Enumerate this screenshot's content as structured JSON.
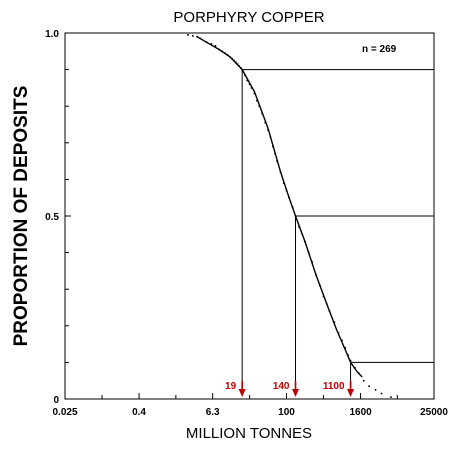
{
  "chart_data": {
    "type": "line",
    "title": "PORPHYRY COPPER",
    "xlabel": "MILLION TONNES",
    "ylabel": "PROPORTION OF DEPOSITS",
    "x_scale": "log",
    "xlim": [
      0.025,
      25000
    ],
    "ylim": [
      0,
      1
    ],
    "x_ticks": [
      "0.025",
      "0.4",
      "6.3",
      "100",
      "1600",
      "25000"
    ],
    "y_ticks": [
      "0",
      "0.5",
      "1.0"
    ],
    "annotation": "n = 269",
    "grid": false,
    "fitted_curve": {
      "x": [
        3.5,
        5,
        8,
        12,
        19,
        30,
        50,
        80,
        110,
        140,
        200,
        300,
        450,
        650,
        900,
        1100,
        1400,
        1700
      ],
      "y": [
        0.99,
        0.975,
        0.955,
        0.935,
        0.9,
        0.84,
        0.74,
        0.62,
        0.55,
        0.5,
        0.43,
        0.34,
        0.26,
        0.19,
        0.135,
        0.1,
        0.075,
        0.06
      ]
    },
    "observed_points": {
      "x": [
        2.5,
        3,
        3.5,
        4,
        5,
        6,
        7,
        8,
        9,
        10,
        11,
        12,
        13,
        14,
        15,
        16,
        17,
        18,
        19,
        21,
        23,
        25,
        27,
        30,
        33,
        36,
        40,
        45,
        50,
        55,
        60,
        65,
        70,
        80,
        90,
        100,
        110,
        125,
        140,
        160,
        180,
        200,
        230,
        260,
        300,
        350,
        400,
        450,
        500,
        600,
        700,
        800,
        900,
        1000,
        1100,
        1300,
        1500,
        1800,
        2200,
        2800,
        3500,
        5000
      ],
      "y": [
        0.995,
        0.992,
        0.99,
        0.985,
        0.975,
        0.97,
        0.965,
        0.955,
        0.95,
        0.945,
        0.94,
        0.935,
        0.93,
        0.925,
        0.92,
        0.915,
        0.91,
        0.905,
        0.9,
        0.885,
        0.87,
        0.86,
        0.85,
        0.835,
        0.815,
        0.8,
        0.78,
        0.755,
        0.735,
        0.715,
        0.69,
        0.67,
        0.65,
        0.62,
        0.59,
        0.57,
        0.55,
        0.525,
        0.5,
        0.47,
        0.45,
        0.43,
        0.4,
        0.375,
        0.34,
        0.31,
        0.28,
        0.26,
        0.24,
        0.21,
        0.18,
        0.16,
        0.14,
        0.12,
        0.105,
        0.085,
        0.07,
        0.05,
        0.035,
        0.025,
        0.015,
        0.005
      ]
    },
    "markers": [
      {
        "label": "19",
        "x": 19,
        "y": 0.9
      },
      {
        "label": "140",
        "x": 140,
        "y": 0.5
      },
      {
        "label": "1100",
        "x": 1100,
        "y": 0.1
      }
    ],
    "colors": {
      "marker": "#c00000",
      "line": "#000000"
    }
  }
}
